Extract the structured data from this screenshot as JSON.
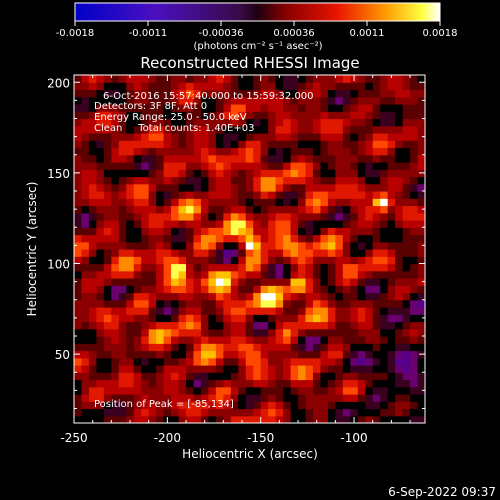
{
  "plot": {
    "title": "Reconstructed RHESSI Image",
    "xlabel": "Heliocentric X (arcsec)",
    "ylabel": "Heliocentric Y (arcsec)",
    "info_lines": [
      "6-Oct-2016 15:57:40.000 to 15:59:32.000",
      "Detectors: 3F 8F, Att 0",
      "Energy Range: 25.0 - 50.0 keV",
      "Clean     Total counts: 1.40E+03"
    ],
    "peak_label": "Position of Peak = [-85,134]",
    "timestamp": "6-Sep-2022 09:37"
  },
  "colorbar": {
    "tick_labels": [
      "-0.0018",
      "-0.0011",
      "-0.00036",
      "0.00036",
      "0.0011",
      "0.0018"
    ],
    "units": "(photons cm⁻² s⁻¹ asec⁻²)",
    "range": [
      -0.0018,
      0.0018
    ]
  },
  "chart_data": {
    "type": "heatmap",
    "title": "Reconstructed RHESSI Image",
    "xlabel": "Heliocentric X (arcsec)",
    "ylabel": "Heliocentric Y (arcsec)",
    "xlim": [
      -250,
      -62
    ],
    "ylim": [
      12,
      204
    ],
    "x_ticks": [
      -250,
      -200,
      -150,
      -100
    ],
    "y_ticks": [
      50,
      100,
      150,
      200
    ],
    "x_tick_labels": [
      "-250",
      "-200",
      "-150",
      "-100"
    ],
    "y_tick_labels": [
      "50",
      "100",
      "150",
      "200"
    ],
    "colormap": "rainbow-like (blue-purple-red-orange-yellow-white)",
    "value_range": [
      -0.0018,
      0.0018
    ],
    "peak": {
      "x": -85,
      "y": 134
    },
    "secondary_peaks": [
      {
        "x": -155,
        "y": 111
      },
      {
        "x": -193,
        "y": 97
      },
      {
        "x": -130,
        "y": 89
      }
    ],
    "detectors": "3F 8F, Att 0",
    "energy_range_kev": [
      25.0,
      50.0
    ],
    "total_counts": 1400,
    "time_range": [
      "6-Oct-2016 15:57:40.000",
      "15:59:32.000"
    ]
  }
}
